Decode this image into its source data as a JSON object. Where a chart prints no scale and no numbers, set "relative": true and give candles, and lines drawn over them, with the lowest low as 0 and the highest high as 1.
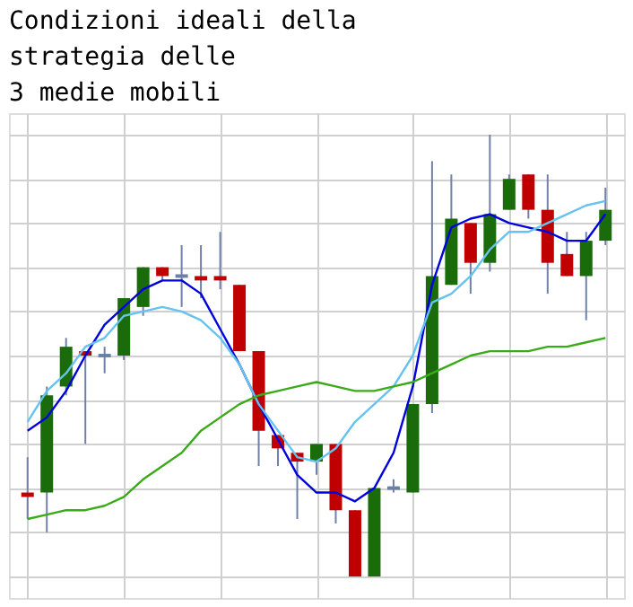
{
  "chart_data": {
    "type": "candlestick",
    "title": "Condizioni ideali della\nstrategia delle\n3 medie mobili",
    "relative": true,
    "grid": true,
    "categories": [
      null,
      null,
      null,
      null,
      null,
      null,
      null,
      null,
      null,
      null,
      null,
      null,
      null,
      null,
      null,
      null,
      null,
      null,
      null,
      null,
      null,
      null,
      null,
      null,
      null,
      null,
      null,
      null,
      null,
      null,
      null
    ],
    "ohlc": [
      [
        0.19,
        0.27,
        0.13,
        0.18
      ],
      [
        0.19,
        0.43,
        0.1,
        0.41
      ],
      [
        0.43,
        0.54,
        0.41,
        0.52
      ],
      [
        0.51,
        0.51,
        0.3,
        0.5
      ],
      [
        0.5,
        0.52,
        0.46,
        0.5
      ],
      [
        0.5,
        0.63,
        0.49,
        0.63
      ],
      [
        0.61,
        0.7,
        0.59,
        0.7
      ],
      [
        0.7,
        0.7,
        0.67,
        0.68
      ],
      [
        0.68,
        0.75,
        0.61,
        0.68
      ],
      [
        0.68,
        0.75,
        0.63,
        0.67
      ],
      [
        0.68,
        0.78,
        0.65,
        0.67
      ],
      [
        0.66,
        0.66,
        0.51,
        0.51
      ],
      [
        0.51,
        0.51,
        0.25,
        0.33
      ],
      [
        0.32,
        0.32,
        0.25,
        0.29
      ],
      [
        0.28,
        0.28,
        0.13,
        0.26
      ],
      [
        0.26,
        0.3,
        0.23,
        0.3
      ],
      [
        0.3,
        0.3,
        0.12,
        0.15
      ],
      [
        0.15,
        0.15,
        0,
        0
      ],
      [
        0,
        0.2,
        0,
        0.2
      ],
      [
        0.2,
        0.22,
        0.19,
        0.2
      ],
      [
        0.19,
        0.39,
        0.19,
        0.39
      ],
      [
        0.39,
        0.94,
        0.37,
        0.68
      ],
      [
        0.66,
        0.91,
        0.66,
        0.81
      ],
      [
        0.8,
        0.8,
        0.64,
        0.71
      ],
      [
        0.71,
        1.0,
        0.69,
        0.82
      ],
      [
        0.83,
        0.91,
        0.83,
        0.9
      ],
      [
        0.91,
        0.91,
        0.81,
        0.83
      ],
      [
        0.83,
        0.91,
        0.64,
        0.71
      ],
      [
        0.73,
        0.78,
        0.68,
        0.68
      ],
      [
        0.68,
        0.78,
        0.58,
        0.76
      ],
      [
        0.76,
        0.88,
        0.75,
        0.83
      ]
    ],
    "colors": [
      "#c00000",
      "#1a6b0a",
      "#1a6b0a",
      "#c00000",
      "#6a7fa8",
      "#1a6b0a",
      "#1a6b0a",
      "#c00000",
      "#6a7fa8",
      "#c00000",
      "#c00000",
      "#c00000",
      "#c00000",
      "#c00000",
      "#c00000",
      "#1a6b0a",
      "#c00000",
      "#c00000",
      "#1a6b0a",
      "#6a7fa8",
      "#1a6b0a",
      "#1a6b0a",
      "#1a6b0a",
      "#c00000",
      "#1a6b0a",
      "#1a6b0a",
      "#c00000",
      "#c00000",
      "#c00000",
      "#1a6b0a",
      "#1a6b0a"
    ],
    "series": [
      {
        "type": "line",
        "color": "#0000dd",
        "values": [
          0.33,
          0.36,
          0.42,
          0.5,
          0.57,
          0.61,
          0.65,
          0.67,
          0.67,
          0.64,
          0.56,
          0.48,
          0.39,
          0.31,
          0.23,
          0.19,
          0.19,
          0.17,
          0.2,
          0.28,
          0.43,
          0.66,
          0.79,
          0.81,
          0.82,
          0.8,
          0.79,
          0.78,
          0.76,
          0.76,
          0.82
        ]
      },
      {
        "type": "line",
        "color": "#66c3f0",
        "values": [
          0.35,
          0.42,
          0.46,
          0.52,
          0.54,
          0.59,
          0.6,
          0.61,
          0.6,
          0.58,
          0.54,
          0.48,
          0.39,
          0.33,
          0.27,
          0.26,
          0.29,
          0.35,
          0.39,
          0.43,
          0.5,
          0.62,
          0.64,
          0.68,
          0.74,
          0.78,
          0.78,
          0.8,
          0.82,
          0.84,
          0.85
        ]
      },
      {
        "type": "line",
        "color": "#3aaa1a",
        "values": [
          0.13,
          0.14,
          0.15,
          0.15,
          0.16,
          0.18,
          0.22,
          0.25,
          0.28,
          0.33,
          0.36,
          0.39,
          0.41,
          0.42,
          0.43,
          0.44,
          0.43,
          0.42,
          0.42,
          0.43,
          0.44,
          0.46,
          0.48,
          0.5,
          0.51,
          0.51,
          0.51,
          0.52,
          0.52,
          0.53,
          0.54
        ]
      }
    ]
  }
}
